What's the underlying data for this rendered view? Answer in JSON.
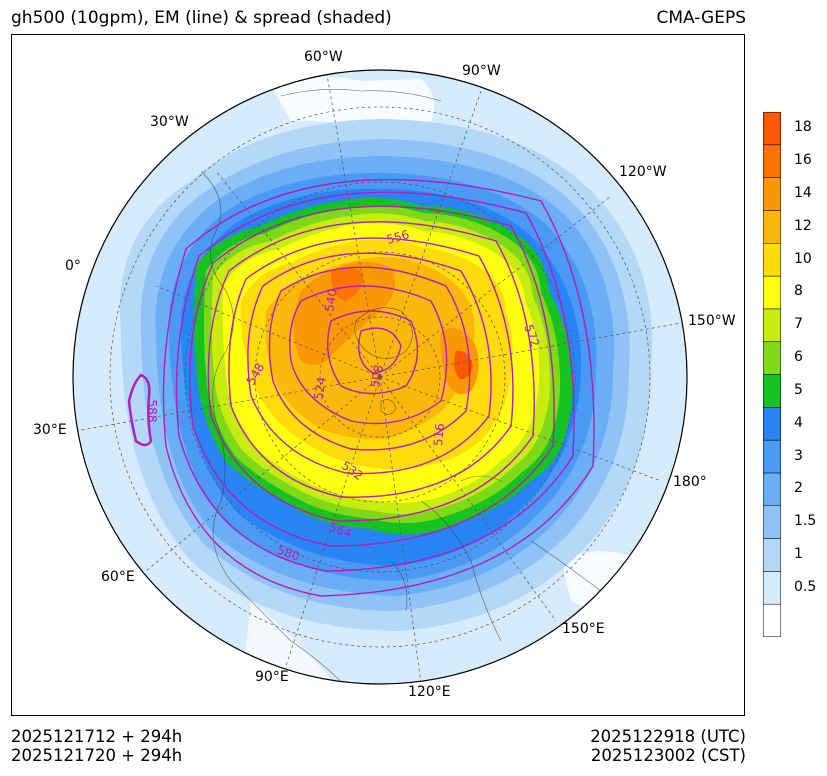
{
  "header": {
    "title": "gh500 (10gpm), EM (line) & spread (shaded)",
    "model": "CMA-GEPS"
  },
  "footer": {
    "init_utc": "2025121712 + 294h",
    "init_cst": "2025121720 + 294h",
    "valid_utc": "2025122918 (UTC)",
    "valid_cst": "2025123002 (CST)"
  },
  "map": {
    "projection": "north polar stereographic",
    "longitude_labels": [
      "0°",
      "30°W",
      "60°W",
      "90°W",
      "120°W",
      "150°W",
      "180°",
      "150°E",
      "120°E",
      "90°E",
      "60°E",
      "30°E"
    ],
    "contour_labels": [
      "508",
      "516",
      "524",
      "532",
      "540",
      "548",
      "556",
      "564",
      "572",
      "580",
      "588"
    ],
    "contour_color": "#b41eb4"
  },
  "colorbar": {
    "levels": [
      "0.5",
      "1",
      "1.5",
      "2",
      "3",
      "4",
      "5",
      "6",
      "7",
      "8",
      "10",
      "12",
      "14",
      "16",
      "18"
    ],
    "colors": [
      "#ffffff",
      "#d6ebfb",
      "#b3d8f8",
      "#8fc3f7",
      "#6aaff6",
      "#4a99f5",
      "#2985f5",
      "#16c21f",
      "#7fd818",
      "#c6ec10",
      "#ffff10",
      "#fddb0c",
      "#fbb80a",
      "#fa9705",
      "#fb7305",
      "#fd5805"
    ]
  }
}
